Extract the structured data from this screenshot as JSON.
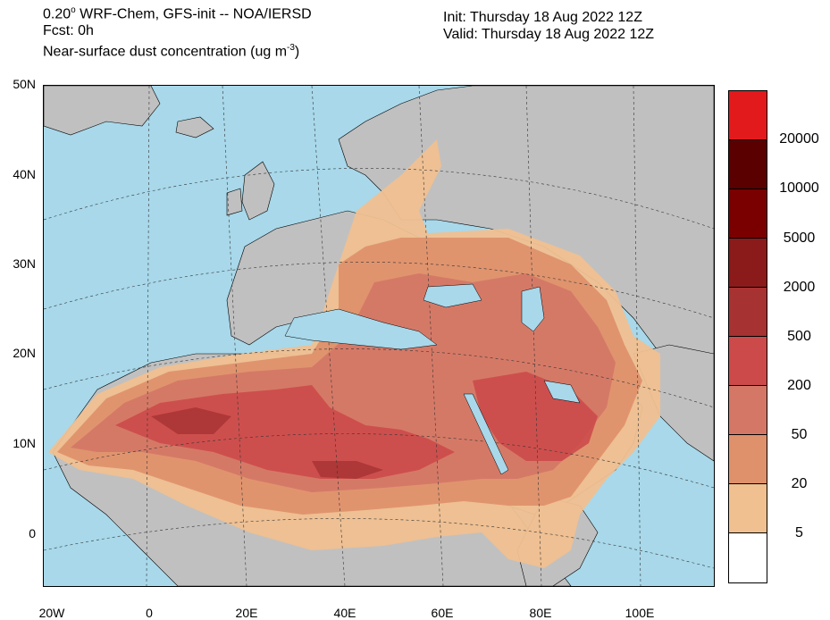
{
  "header": {
    "model_prefix": "0.20",
    "model_degree": "o",
    "model_rest": " WRF-Chem, GFS-init -- NOA/IERSD",
    "forecast": "Fcst: 0h",
    "variable_prefix": "Near-surface dust concentration (ug m",
    "variable_exp": "-3",
    "variable_suffix": ")",
    "init": "Init: Thursday 18 Aug 2022  12Z",
    "valid": "Valid: Thursday 18 Aug 2022  12Z"
  },
  "axes": {
    "lat_labels": [
      "50N",
      "40N",
      "30N",
      "20N",
      "10N",
      "0"
    ],
    "lon_labels": [
      "20W",
      "0",
      "20E",
      "40E",
      "60E",
      "80E",
      "100E"
    ]
  },
  "legend": {
    "colors": [
      "#e31a1c",
      "#5a0000",
      "#7a0000",
      "#8b1a1a",
      "#a63232",
      "#cc4a4a",
      "#d47766",
      "#de916b",
      "#f0c090",
      "#ffffff"
    ],
    "labels": [
      "20000",
      "10000",
      "5000",
      "2000",
      "500",
      "200",
      "50",
      "20",
      "5"
    ]
  },
  "palette": {
    "ocean": "#a8d8ea",
    "land": "#c0c0c0"
  }
}
